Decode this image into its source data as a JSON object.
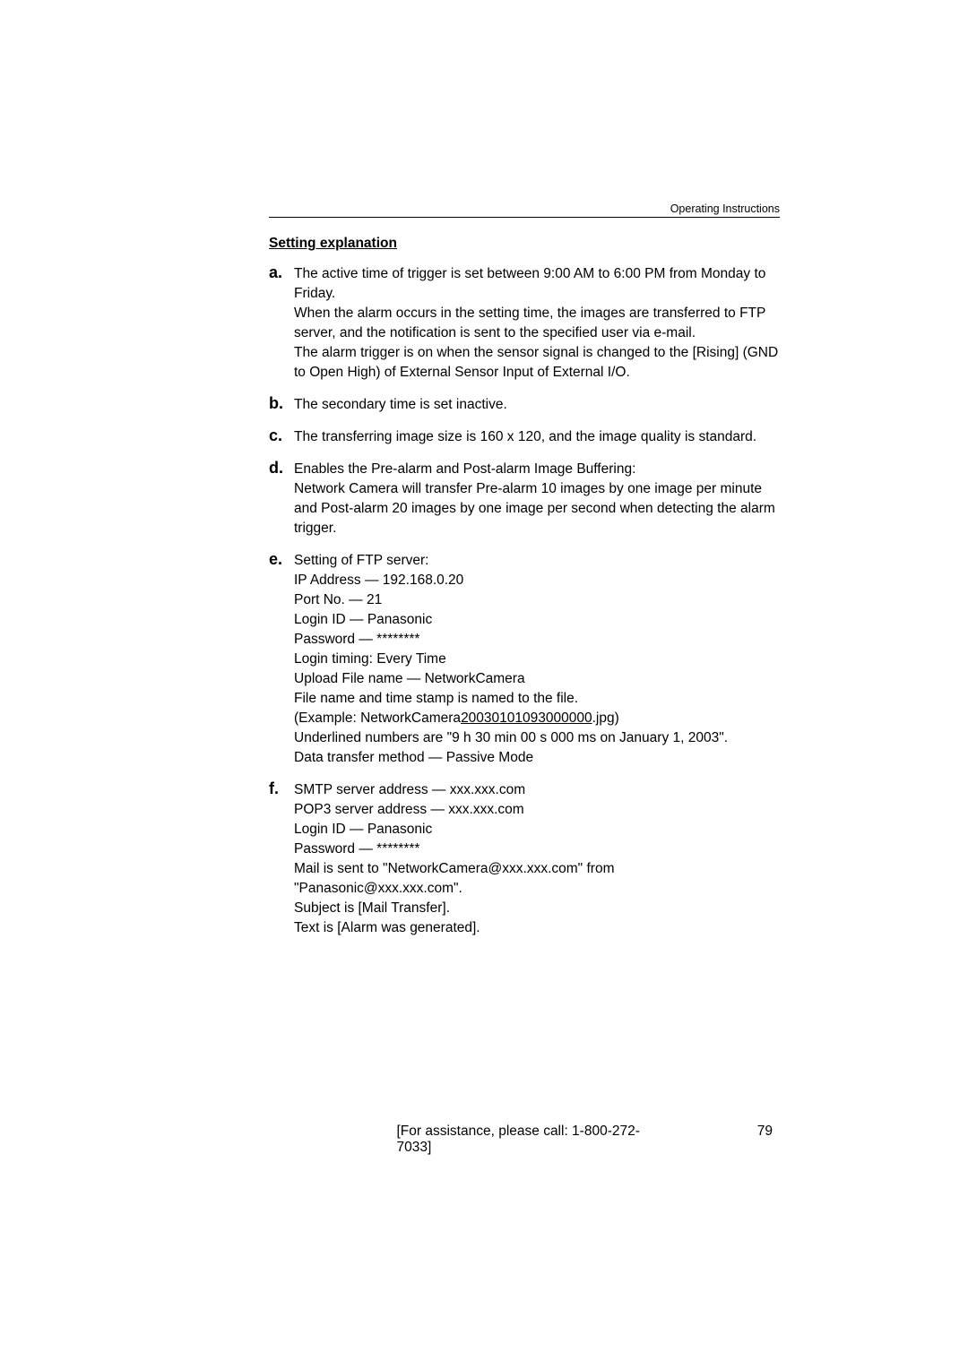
{
  "header": {
    "label": "Operating Instructions"
  },
  "section_title": "Setting explanation",
  "items": [
    {
      "letter": "a.",
      "paras": [
        "The active time of trigger is set between 9:00 AM to 6:00 PM from Monday to Friday.",
        "When the alarm occurs in the setting time, the images are transferred to FTP server, and the notification is sent to the specified user via e-mail.",
        "The alarm trigger is on when the sensor signal is changed to the [Rising] (GND to Open High) of External Sensor Input of External I/O."
      ]
    },
    {
      "letter": "b.",
      "paras": [
        "The secondary time is set inactive."
      ]
    },
    {
      "letter": "c.",
      "paras": [
        "The transferring image size is 160 x 120, and the image quality is standard."
      ]
    },
    {
      "letter": "d.",
      "paras": [
        "Enables the Pre-alarm and Post-alarm Image Buffering:",
        "Network Camera will transfer Pre-alarm 10 images by one image per minute and Post-alarm 20 images by one image per second when detecting the alarm trigger."
      ]
    },
    {
      "letter": "e.",
      "paras": [
        "Setting of FTP server:",
        "IP Address — 192.168.0.20",
        "Port No. — 21",
        "Login ID — Panasonic",
        "Password — ********",
        "Login timing: Every Time",
        "Upload File name — NetworkCamera",
        "File name and time stamp is named to the file."
      ],
      "example_prefix": "(Example: NetworkCamera",
      "example_underlined": "20030101093000000",
      "example_suffix": ".jpg)",
      "paras_after": [
        "Underlined numbers are \"9 h 30 min 00 s 000 ms on January 1, 2003\".",
        "Data transfer method — Passive Mode"
      ]
    },
    {
      "letter": "f.",
      "paras": [
        "SMTP server address — xxx.xxx.com",
        "POP3 server address — xxx.xxx.com",
        "Login ID — Panasonic",
        "Password — ********",
        "Mail is sent to \"NetworkCamera@xxx.xxx.com\" from \"Panasonic@xxx.xxx.com\".",
        "Subject is [Mail Transfer].",
        "Text is [Alarm was generated]."
      ]
    }
  ],
  "footer": {
    "center": "[For assistance, please call: 1-800-272-7033]",
    "page_number": "79"
  }
}
